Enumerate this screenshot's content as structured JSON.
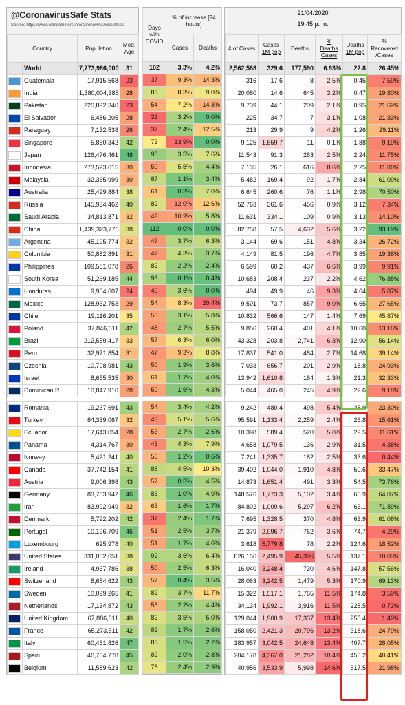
{
  "title": "@CoronavirusSafe Stats",
  "source": "Source: https://www.worldometers.info/coronavirus/#countries",
  "date": "21/04/2020",
  "time": "19:45 p. m.",
  "headers": {
    "country": "Country",
    "population": "Population",
    "med_age": "Med. Age",
    "days": "Days with COVID",
    "increase": "% of increase [24 hours]",
    "inc_cases": "Cases",
    "inc_deaths": "Deaths",
    "num_cases": "# of Cases",
    "cases_1m": "Cases 1M pop",
    "deaths": "Deaths",
    "pct_deaths": "% Deaths Cases",
    "deaths_1m": "Deaths 1M pop",
    "pct_recovered": "% Recovered /Cases"
  },
  "world": [
    "World",
    "7,773,986,000",
    "31",
    "102",
    "3.3%",
    "4.2%",
    "2,562,568",
    "329.6",
    "177,590",
    "6.93%",
    "22.8",
    "26.45%"
  ],
  "groupA": [
    [
      "Guatemala",
      "17,915,568",
      "23",
      "37",
      "9.3%",
      "14.3%",
      "316",
      "17.6",
      "8",
      "2.5%",
      "0.45",
      "7.59%"
    ],
    [
      "India",
      "1,380,004,385",
      "28",
      "83",
      "8.3%",
      "9.0%",
      "20,080",
      "14.6",
      "645",
      "3.2%",
      "0.47",
      "19.80%"
    ],
    [
      "Pakistan",
      "220,892,340",
      "23",
      "54",
      "7.2%",
      "14.8%",
      "9,739",
      "44.1",
      "209",
      "2.1%",
      "0.95",
      "21.69%"
    ],
    [
      "El Salvador",
      "6,486,205",
      "28",
      "33",
      "3.2%",
      "0.0%",
      "225",
      "34.7",
      "7",
      "3.1%",
      "1.08",
      "21.33%"
    ],
    [
      "Paraguay",
      "7,132,538",
      "26",
      "37",
      "2.4%",
      "12.5%",
      "213",
      "29.9",
      "9",
      "4.2%",
      "1.26",
      "29.11%"
    ],
    [
      "Singapore",
      "5,850,342",
      "42",
      "73",
      "13.9%",
      "0.0%",
      "9,125",
      "1,559.7",
      "11",
      "0.1%",
      "1.88",
      "9.19%"
    ],
    [
      "Japan",
      "126,476,461",
      "48",
      "98",
      "3.5%",
      "7.6%",
      "11,543",
      "91.3",
      "283",
      "2.5%",
      "2.24",
      "11.75%"
    ],
    [
      "Indonesia",
      "273,523,615",
      "30",
      "50",
      "5.5%",
      "4.4%",
      "7,135",
      "26.1",
      "616",
      "8.6%",
      "2.25",
      "11.80%"
    ],
    [
      "Malaysia",
      "32,365,999",
      "30",
      "87",
      "1.1%",
      "3.4%",
      "5,482",
      "169.4",
      "92",
      "1.7%",
      "2.84",
      "61.09%"
    ],
    [
      "Australia",
      "25,499,884",
      "38",
      "61",
      "0.3%",
      "7.0%",
      "6,645",
      "260.6",
      "76",
      "1.1%",
      "2.98",
      "70.50%"
    ],
    [
      "Russia",
      "145,934,462",
      "40",
      "82",
      "12.0%",
      "12.6%",
      "52,763",
      "361.6",
      "456",
      "0.9%",
      "3.12",
      "7.34%"
    ],
    [
      "Saudi Arabia",
      "34,813,871",
      "32",
      "49",
      "10.9%",
      "5.8%",
      "11,631",
      "334.1",
      "109",
      "0.9%",
      "3.13",
      "14.10%"
    ],
    [
      "China",
      "1,439,323,776",
      "38",
      "112",
      "0.0%",
      "0.0%",
      "82,758",
      "57.5",
      "4,632",
      "5.6%",
      "3.22",
      "93.19%"
    ],
    [
      "Argentina",
      "45,195,774",
      "32",
      "47",
      "3.7%",
      "6.3%",
      "3,144",
      "69.6",
      "151",
      "4.8%",
      "3.34",
      "26.72%"
    ],
    [
      "Colombia",
      "50,882,891",
      "31",
      "47",
      "4.3%",
      "3.7%",
      "4,149",
      "81.5",
      "196",
      "4.7%",
      "3.85",
      "19.38%"
    ],
    [
      "Philippines",
      "109,581,078",
      "26",
      "82",
      "2.2%",
      "2.4%",
      "6,599",
      "60.2",
      "437",
      "6.6%",
      "3.99",
      "9.91%"
    ],
    [
      "South Korea",
      "51,269,185",
      "44",
      "93",
      "0.1%",
      "0.4%",
      "10,683",
      "208.4",
      "237",
      "2.2%",
      "4.62",
      "76.88%"
    ],
    [
      "Honduras",
      "9,904,607",
      "24",
      "40",
      "3.6%",
      "0.0%",
      "494",
      "49.9",
      "46",
      "9.3%",
      "4.64",
      "5.87%"
    ],
    [
      "Mexico",
      "128,932,753",
      "29",
      "54",
      "8.3%",
      "20.4%",
      "9,501",
      "73.7",
      "857",
      "9.0%",
      "6.65",
      "27.65%"
    ],
    [
      "Chile",
      "19,116,201",
      "35",
      "50",
      "3.1%",
      "5.8%",
      "10,832",
      "566.6",
      "147",
      "1.4%",
      "7.69",
      "45.87%"
    ],
    [
      "Poland",
      "37,846,611",
      "42",
      "48",
      "2.7%",
      "5.5%",
      "9,856",
      "260.4",
      "401",
      "4.1%",
      "10.60",
      "13.16%"
    ],
    [
      "Brazil",
      "212,559,417",
      "33",
      "57",
      "6.3%",
      "6.0%",
      "43,328",
      "203.8",
      "2,741",
      "6.3%",
      "12.90",
      "56.14%"
    ],
    [
      "Peru",
      "32,971,854",
      "31",
      "47",
      "9.3%",
      "8.8%",
      "17,837",
      "541.0",
      "484",
      "2.7%",
      "14.68",
      "39.14%"
    ],
    [
      "Czechia",
      "10,708,981",
      "43",
      "50",
      "1.9%",
      "3.6%",
      "7,033",
      "656.7",
      "201",
      "2.9%",
      "18.8",
      "24.93%"
    ],
    [
      "Israel",
      "8,655,535",
      "30",
      "61",
      "1.7%",
      "4.0%",
      "13,942",
      "1,610.8",
      "184",
      "1.3%",
      "21.3",
      "32.33%"
    ],
    [
      "Dominican R.",
      "10,847,910",
      "28",
      "50",
      "1.6%",
      "4.3%",
      "5,044",
      "465.0",
      "245",
      "4.9%",
      "22.6",
      "9.18%"
    ]
  ],
  "groupB": [
    [
      "Romania",
      "19,237,691",
      "43",
      "54",
      "3.4%",
      "4.2%",
      "9,242",
      "480.4",
      "498",
      "5.4%",
      "25.9",
      "23.30%"
    ],
    [
      "Turkey",
      "84,339,067",
      "32",
      "43",
      "5.1%",
      "5.6%",
      "95,591",
      "1,133.4",
      "2,259",
      "2.4%",
      "26.8",
      "15.61%"
    ],
    [
      "Ecuador",
      "17,643,054",
      "28",
      "53",
      "2.7%",
      "2.6%",
      "10,398",
      "589.4",
      "520",
      "5.0%",
      "29.5",
      "11.61%"
    ],
    [
      "Panama",
      "4,314,767",
      "30",
      "43",
      "4.3%",
      "7.9%",
      "4,658",
      "1,079.5",
      "136",
      "2.9%",
      "31.5",
      "4.38%"
    ],
    [
      "Norway",
      "5,421,241",
      "40",
      "56",
      "1.2%",
      "0.6%",
      "7,241",
      "1,335.7",
      "182",
      "2.5%",
      "33.6",
      "0.44%"
    ],
    [
      "Canada",
      "37,742,154",
      "41",
      "88",
      "4.5%",
      "10.3%",
      "39,402",
      "1,044.0",
      "1,910",
      "4.8%",
      "50.6",
      "33.47%"
    ],
    [
      "Austria",
      "9,006,398",
      "43",
      "57",
      "0.5%",
      "4.5%",
      "14,873",
      "1,651.4",
      "491",
      "3.3%",
      "54.5",
      "73.76%"
    ],
    [
      "Germany",
      "83,783,942",
      "46",
      "86",
      "1.0%",
      "4.9%",
      "148,576",
      "1,773.3",
      "5,102",
      "3.4%",
      "60.9",
      "64.07%"
    ],
    [
      "Iran",
      "83,992,949",
      "32",
      "63",
      "1.6%",
      "1.7%",
      "84,802",
      "1,009.6",
      "5,297",
      "6.2%",
      "63.1",
      "71.89%"
    ],
    [
      "Denmark",
      "5,792,202",
      "42",
      "37",
      "2.4%",
      "1.7%",
      "7,695",
      "1,328.5",
      "370",
      "4.8%",
      "63.9",
      "61.08%"
    ],
    [
      "Portugal",
      "10,196,709",
      "46",
      "51",
      "2.5%",
      "3.7%",
      "21,379",
      "2,096.7",
      "762",
      "3.6%",
      "74.7",
      "4.29%"
    ],
    [
      "Luxembourg",
      "625,978",
      "40",
      "51",
      "1.7%",
      "4.0%",
      "3,618",
      "5,779.8",
      "78",
      "2.2%",
      "124.6",
      "18.52%"
    ],
    [
      "United States",
      "331,002,651",
      "38",
      "92",
      "3.6%",
      "6.4%",
      "826,156",
      "2,495.9",
      "45,396",
      "5.5%",
      "137.1",
      "10.03%"
    ],
    [
      "Ireland",
      "4,937,786",
      "38",
      "50",
      "2.5%",
      "6.3%",
      "16,040",
      "3,248.4",
      "730",
      "4.6%",
      "147.8",
      "57.56%"
    ],
    [
      "Switzerland",
      "8,654,622",
      "43",
      "57",
      "0.4%",
      "3.5%",
      "28,063",
      "3,242.5",
      "1,479",
      "5.3%",
      "170.9",
      "69.13%"
    ],
    [
      "Sweden",
      "10,099,265",
      "41",
      "82",
      "3.7%",
      "11.7%",
      "15,322",
      "1,517.1",
      "1,765",
      "11.5%",
      "174.8",
      "3.59%"
    ],
    [
      "Netherlands",
      "17,134,872",
      "43",
      "55",
      "2.2%",
      "4.4%",
      "34,134",
      "1,992.1",
      "3,916",
      "11.5%",
      "228.5",
      "0.73%"
    ],
    [
      "United Kingdom",
      "67,886,011",
      "40",
      "82",
      "3.5%",
      "5.0%",
      "129,044",
      "1,900.9",
      "17,337",
      "13.4%",
      "255.4",
      "1.49%"
    ],
    [
      "France",
      "65,273,511",
      "42",
      "89",
      "1.7%",
      "2.6%",
      "158,050",
      "2,421.3",
      "20,796",
      "13.2%",
      "318.6",
      "24.79%"
    ],
    [
      "Italy",
      "60,461,826",
      "47",
      "83",
      "1.5%",
      "2.2%",
      "183,957",
      "3,042.5",
      "24,648",
      "13.4%",
      "407.7",
      "28.05%"
    ],
    [
      "Spain",
      "46,754,778",
      "45",
      "82",
      "2.0%",
      "2.8%",
      "204,178",
      "4,367.0",
      "21,282",
      "10.4%",
      "455.2",
      "40.41%"
    ],
    [
      "Belgium",
      "11,589,623",
      "42",
      "78",
      "2.4%",
      "2.9%",
      "40,956",
      "3,533.9",
      "5,998",
      "14.6%",
      "517.5",
      "21.98%"
    ]
  ],
  "flags": [
    "#4997d0",
    "#ff9933",
    "#01411c",
    "#0047ab",
    "#d52b1e",
    "#ef3340",
    "#ffffff",
    "#ce1126",
    "#cc0001",
    "#00008b",
    "#d52b1e",
    "#006c35",
    "#de2910",
    "#74acdf",
    "#fcd116",
    "#0038a8",
    "#ffffff",
    "#0073cf",
    "#006847",
    "#0039a6",
    "#dc143c",
    "#009c3b",
    "#d91023",
    "#11457e",
    "#0038b8",
    "#002d62",
    "#002b7f",
    "#e30a17",
    "#ffdd00",
    "#005293",
    "#ba0c2f",
    "#ff0000",
    "#ed2939",
    "#000000",
    "#239f40",
    "#c60c30",
    "#006600",
    "#00a1de",
    "#3c3b6e",
    "#169b62",
    "#ff0000",
    "#006aa7",
    "#ae1c28",
    "#012169",
    "#0055a4",
    "#009246",
    "#aa151b",
    "#000000"
  ]
}
